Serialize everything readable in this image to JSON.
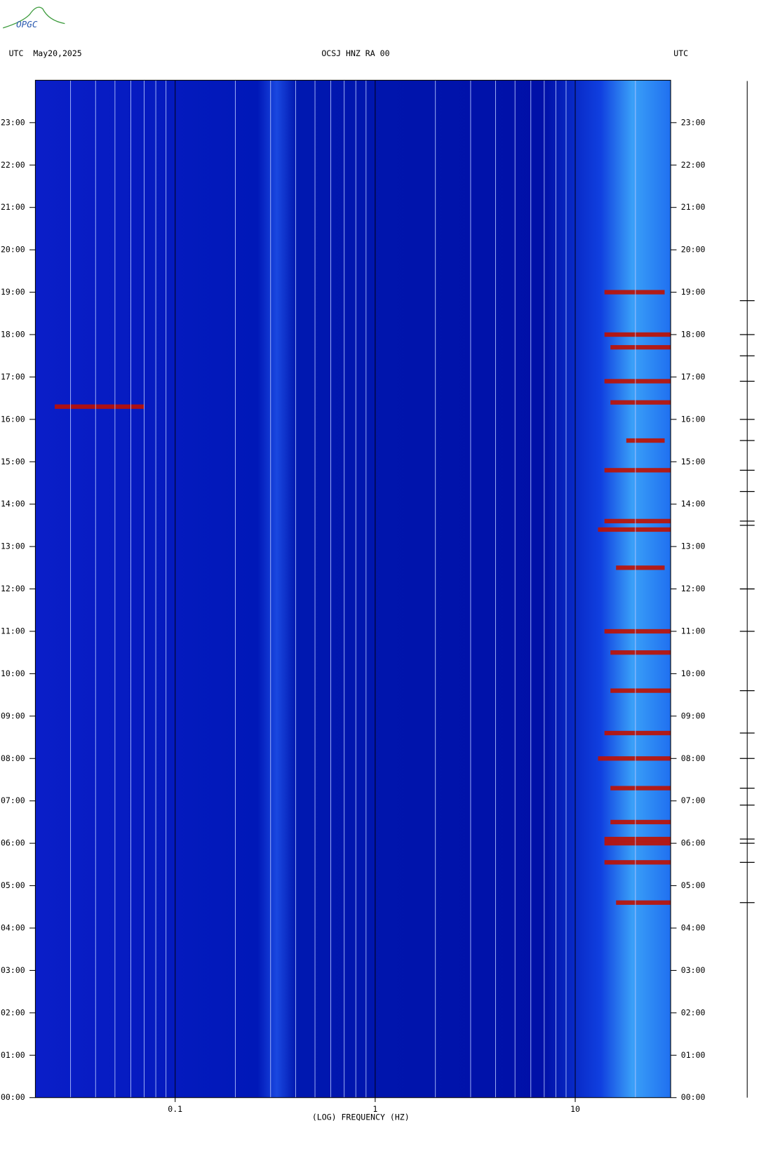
{
  "logo": "OPGC",
  "chart_data": {
    "type": "spectrogram",
    "title_left": "UTC  May20,2025",
    "title": "OCSJ HNZ RA 00",
    "title_right": "UTC",
    "x_label": "(LOG) FREQUENCY (HZ)",
    "log_x": true,
    "xlim": [
      0.02,
      30
    ],
    "xticks": [
      0.1,
      1,
      10
    ],
    "xminor": [
      0.03,
      0.04,
      0.05,
      0.06,
      0.07,
      0.08,
      0.09,
      0.2,
      0.3,
      0.4,
      0.5,
      0.6,
      0.7,
      0.8,
      0.9,
      2,
      3,
      4,
      5,
      6,
      7,
      8,
      9,
      20
    ],
    "ylim": [
      0,
      24
    ],
    "yticks": [
      {
        "value": 0,
        "label": "00:00"
      },
      {
        "value": 1,
        "label": "01:00"
      },
      {
        "value": 2,
        "label": "02:00"
      },
      {
        "value": 3,
        "label": "03:00"
      },
      {
        "value": 4,
        "label": "04:00"
      },
      {
        "value": 5,
        "label": "05:00"
      },
      {
        "value": 6,
        "label": "06:00"
      },
      {
        "value": 7,
        "label": "07:00"
      },
      {
        "value": 8,
        "label": "08:00"
      },
      {
        "value": 9,
        "label": "09:00"
      },
      {
        "value": 10,
        "label": "10:00"
      },
      {
        "value": 11,
        "label": "11:00"
      },
      {
        "value": 12,
        "label": "12:00"
      },
      {
        "value": 13,
        "label": "13:00"
      },
      {
        "value": 14,
        "label": "14:00"
      },
      {
        "value": 15,
        "label": "15:00"
      },
      {
        "value": 16,
        "label": "16:00"
      },
      {
        "value": 17,
        "label": "17:00"
      },
      {
        "value": 18,
        "label": "18:00"
      },
      {
        "value": 19,
        "label": "19:00"
      },
      {
        "value": 20,
        "label": "20:00"
      },
      {
        "value": 21,
        "label": "21:00"
      },
      {
        "value": 22,
        "label": "22:00"
      },
      {
        "value": 23,
        "label": "23:00"
      }
    ],
    "events": {
      "color": "#c01000",
      "time": [
        16.3,
        4.6,
        5.55,
        6.0,
        6.1,
        6.5,
        7.3,
        8.0,
        8.6,
        9.6,
        10.5,
        11.0,
        12.5,
        13.4,
        13.6,
        14.8,
        15.5,
        16.4,
        16.9,
        17.7,
        18.0,
        19.0
      ],
      "fmin": [
        0.025,
        16,
        14,
        14,
        14,
        15,
        15,
        13,
        14,
        15,
        15,
        14,
        16,
        13,
        14,
        14,
        18,
        15,
        14,
        15,
        14,
        14
      ],
      "fmax": [
        0.07,
        30,
        30,
        30,
        30,
        30,
        30,
        30,
        30,
        30,
        30,
        30,
        28,
        30,
        30,
        30,
        28,
        30,
        30,
        30,
        30,
        28
      ]
    },
    "trace_events": [
      4.6,
      5.55,
      6.0,
      6.1,
      6.9,
      7.3,
      8.0,
      8.6,
      9.6,
      11.0,
      12.0,
      13.5,
      13.6,
      14.3,
      14.8,
      15.5,
      16.0,
      16.9,
      17.5,
      18.0,
      18.8
    ]
  }
}
